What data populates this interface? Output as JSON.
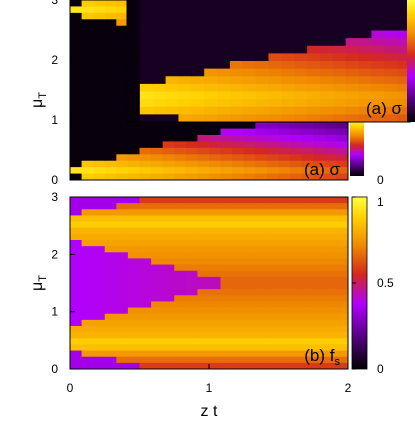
{
  "chart_data": [
    {
      "type": "heatmap",
      "panel_label": "(a) σ",
      "xlabel": "",
      "ylabel": "μT",
      "xlim": [
        0,
        2
      ],
      "ylim": [
        0,
        3
      ],
      "x_ticks": [],
      "y_ticks": [
        "0",
        "1",
        "2",
        "3"
      ],
      "colorbar": {
        "ticks": [
          "0"
        ]
      },
      "inset": {
        "panel_label": "(a) σ"
      },
      "colormap": [
        "#000000",
        "#5a0088",
        "#b000ff",
        "#d4281f",
        "#f08a00",
        "#ffd000",
        "#ffff40"
      ],
      "description_of_values": "estimated color-scale value per (z t, μT)"
    },
    {
      "type": "heatmap",
      "panel_label": "(b) f",
      "panel_label_sub": "s",
      "xlabel": "z t",
      "ylabel": "μT",
      "xlim": [
        0,
        2
      ],
      "ylim": [
        0,
        3
      ],
      "x_ticks": [
        "0",
        "1",
        "2"
      ],
      "y_ticks": [
        "0",
        "1",
        "2",
        "3"
      ],
      "colorbar": {
        "range": [
          0,
          1
        ],
        "ticks": [
          "0",
          "0.5",
          "1"
        ]
      },
      "colormap": [
        "#000000",
        "#5a0088",
        "#b000ff",
        "#d4281f",
        "#f08a00",
        "#ffd000",
        "#ffff40"
      ]
    }
  ]
}
